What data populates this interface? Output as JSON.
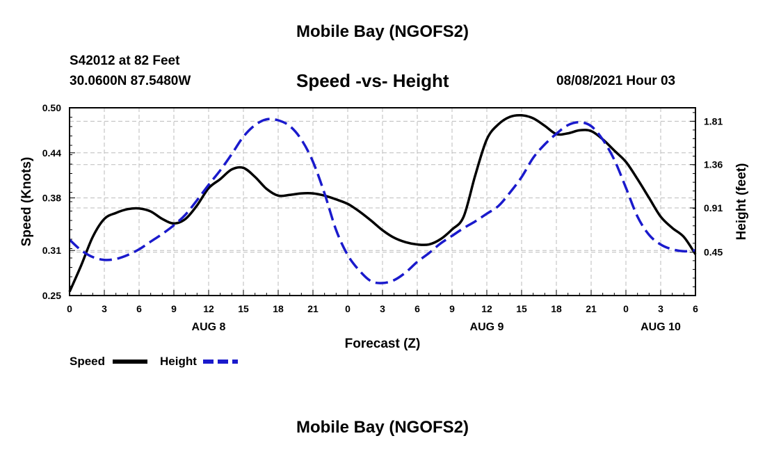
{
  "header": {
    "title": "Mobile Bay (NGOFS2)",
    "station": "S42012 at 82 Feet",
    "coords": "30.0600N  87.5480W",
    "chart_title": "Speed -vs- Height",
    "date": "08/08/2021 Hour 03"
  },
  "footer": {
    "title": "Mobile Bay (NGOFS2)"
  },
  "colors": {
    "speed": "#000000",
    "height": "#1a1acc",
    "grid": "#bbbbbb"
  },
  "chart_data": {
    "type": "line",
    "title": "Speed -vs- Height",
    "xlabel": "Forecast (Z)",
    "ylabel": "Speed (Knots)",
    "y2label": "Height (feet)",
    "xlim": [
      0,
      54
    ],
    "ylim": [
      0.25,
      0.5
    ],
    "y2lim": [
      0.0,
      1.95
    ],
    "x_ticks": [
      0,
      3,
      6,
      9,
      12,
      15,
      18,
      21,
      24,
      27,
      30,
      33,
      36,
      39,
      42,
      45,
      48,
      51,
      54
    ],
    "x_tick_labels": [
      "0",
      "3",
      "6",
      "9",
      "12",
      "15",
      "18",
      "21",
      "0",
      "3",
      "6",
      "9",
      "12",
      "15",
      "18",
      "21",
      "0",
      "3",
      "6"
    ],
    "y_ticks": [
      0.25,
      0.31,
      0.38,
      0.44,
      0.5
    ],
    "y_tick_labels": [
      "0.25",
      "0.31",
      "0.38",
      "0.44",
      "0.50"
    ],
    "y2_ticks": [
      0.45,
      0.91,
      1.36,
      1.81
    ],
    "y2_tick_labels": [
      "0.45",
      "0.91",
      "1.36",
      "1.81"
    ],
    "day_labels": [
      {
        "x": 12,
        "label": "AUG 8"
      },
      {
        "x": 36,
        "label": "AUG 9"
      },
      {
        "x": 51,
        "label": "AUG 10"
      }
    ],
    "grid": true,
    "legend_position": "bottom-left",
    "series": [
      {
        "name": "Speed",
        "axis": "left",
        "style": "solid",
        "x": [
          0,
          1,
          2,
          3,
          4,
          5,
          6,
          7,
          8,
          9,
          10,
          11,
          12,
          13,
          14,
          15,
          16,
          17,
          18,
          19,
          20,
          21,
          22,
          23,
          24,
          25,
          26,
          27,
          28,
          29,
          30,
          31,
          32,
          33,
          34,
          35,
          36,
          37,
          38,
          39,
          40,
          41,
          42,
          43,
          44,
          45,
          46,
          47,
          48,
          49,
          50,
          51,
          52,
          53,
          54
        ],
        "values": [
          0.255,
          0.29,
          0.328,
          0.352,
          0.36,
          0.365,
          0.366,
          0.362,
          0.352,
          0.346,
          0.352,
          0.37,
          0.393,
          0.405,
          0.418,
          0.42,
          0.408,
          0.392,
          0.383,
          0.384,
          0.386,
          0.386,
          0.383,
          0.378,
          0.372,
          0.362,
          0.35,
          0.337,
          0.327,
          0.321,
          0.318,
          0.318,
          0.325,
          0.338,
          0.355,
          0.41,
          0.458,
          0.478,
          0.488,
          0.49,
          0.486,
          0.476,
          0.465,
          0.466,
          0.47,
          0.469,
          0.458,
          0.443,
          0.428,
          0.405,
          0.38,
          0.355,
          0.34,
          0.328,
          0.305
        ]
      },
      {
        "name": "Height",
        "axis": "right",
        "style": "dashed",
        "x": [
          0,
          1,
          2,
          3,
          4,
          5,
          6,
          7,
          8,
          9,
          10,
          11,
          12,
          13,
          14,
          15,
          16,
          17,
          18,
          19,
          20,
          21,
          22,
          23,
          24,
          25,
          26,
          27,
          28,
          29,
          30,
          31,
          32,
          33,
          34,
          35,
          36,
          37,
          38,
          39,
          40,
          41,
          42,
          43,
          44,
          45,
          46,
          47,
          48,
          49,
          50,
          51,
          52,
          53,
          54
        ],
        "values": [
          0.58,
          0.47,
          0.4,
          0.37,
          0.38,
          0.42,
          0.48,
          0.56,
          0.64,
          0.73,
          0.84,
          0.99,
          1.15,
          1.3,
          1.47,
          1.65,
          1.77,
          1.83,
          1.82,
          1.76,
          1.62,
          1.39,
          1.06,
          0.68,
          0.42,
          0.26,
          0.15,
          0.13,
          0.16,
          0.24,
          0.35,
          0.44,
          0.54,
          0.62,
          0.7,
          0.77,
          0.85,
          0.93,
          1.07,
          1.23,
          1.43,
          1.57,
          1.68,
          1.77,
          1.8,
          1.76,
          1.62,
          1.41,
          1.12,
          0.82,
          0.63,
          0.53,
          0.48,
          0.46,
          0.47
        ]
      }
    ]
  },
  "legend": {
    "speed_label": "Speed",
    "height_label": "Height"
  }
}
